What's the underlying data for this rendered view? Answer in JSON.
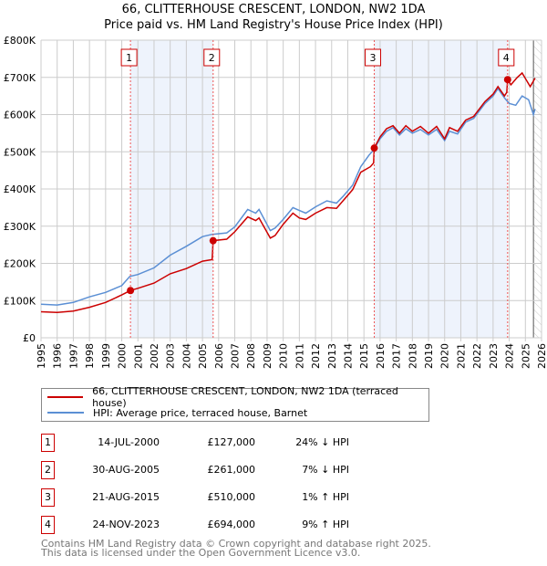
{
  "title_line1": "66, CLITTERHOUSE CRESCENT, LONDON, NW2 1DA",
  "title_line2": "Price paid vs. HM Land Registry's House Price Index (HPI)",
  "chart_data": {
    "type": "line",
    "title": "66, CLITTERHOUSE CRESCENT, LONDON, NW2 1DA - Price paid vs. HM Land Registry's House Price Index (HPI)",
    "xlim": [
      1995,
      2026
    ],
    "ylim": [
      0,
      800000
    ],
    "x_ticks": [
      "1995",
      "1996",
      "1997",
      "1998",
      "1999",
      "2000",
      "2001",
      "2002",
      "2003",
      "2004",
      "2005",
      "2006",
      "2007",
      "2008",
      "2009",
      "2010",
      "2011",
      "2012",
      "2013",
      "2014",
      "2015",
      "2016",
      "2017",
      "2018",
      "2019",
      "2020",
      "2021",
      "2022",
      "2023",
      "2024",
      "2025",
      "2026"
    ],
    "y_ticks": [
      {
        "v": 0,
        "label": "£0"
      },
      {
        "v": 100000,
        "label": "£100K"
      },
      {
        "v": 200000,
        "label": "£200K"
      },
      {
        "v": 300000,
        "label": "£300K"
      },
      {
        "v": 400000,
        "label": "£400K"
      },
      {
        "v": 500000,
        "label": "£500K"
      },
      {
        "v": 600000,
        "label": "£600K"
      },
      {
        "v": 700000,
        "label": "£700K"
      },
      {
        "v": 800000,
        "label": "£800K"
      }
    ],
    "grid": true,
    "forecast_hatch_from": 2025.5,
    "series": [
      {
        "name": "66, CLITTERHOUSE CRESCENT, LONDON, NW2 1DA (terraced house)",
        "color": "#cc0000",
        "x": [
          1995,
          1996,
          1997,
          1998,
          1999,
          2000,
          2000.54,
          2001,
          2002,
          2003,
          2004,
          2005,
          2005.6,
          2005.66,
          2006.5,
          2007,
          2007.8,
          2008.3,
          2008.5,
          2009.2,
          2009.5,
          2010,
          2010.6,
          2011,
          2011.4,
          2012,
          2012.7,
          2013.3,
          2013.7,
          2014.3,
          2014.8,
          2015.4,
          2015.6,
          2015.64,
          2016,
          2016.4,
          2016.8,
          2017.2,
          2017.6,
          2018,
          2018.5,
          2019,
          2019.5,
          2020,
          2020.3,
          2020.8,
          2021.3,
          2021.8,
          2022.5,
          2023,
          2023.3,
          2023.7,
          2023.85,
          2023.9,
          2024.1,
          2024.5,
          2024.8,
          2025.3,
          2025.6
        ],
        "y": [
          70,
          68,
          72,
          82,
          95,
          115,
          127,
          133,
          147,
          172,
          186,
          206,
          210,
          261,
          265,
          285,
          325,
          315,
          322,
          268,
          275,
          305,
          335,
          322,
          318,
          335,
          350,
          348,
          368,
          398,
          445,
          460,
          470,
          510,
          540,
          562,
          570,
          550,
          570,
          555,
          568,
          550,
          568,
          535,
          565,
          555,
          585,
          595,
          635,
          655,
          675,
          650,
          660,
          694,
          680,
          700,
          712,
          675,
          698
        ]
      },
      {
        "name": "HPI: Average price, terraced house, Barnet",
        "color": "#5b8fd4",
        "x": [
          1995,
          1996,
          1997,
          1998,
          1999,
          2000,
          2000.5,
          2001,
          2002,
          2003,
          2004,
          2005,
          2005.6,
          2006.5,
          2007,
          2007.8,
          2008.3,
          2008.5,
          2009.2,
          2009.5,
          2010,
          2010.6,
          2011,
          2011.4,
          2012,
          2012.7,
          2013.3,
          2013.7,
          2014.3,
          2014.8,
          2015.3,
          2015.6,
          2016,
          2016.4,
          2016.8,
          2017.2,
          2017.6,
          2018,
          2018.5,
          2019,
          2019.5,
          2020,
          2020.3,
          2020.8,
          2021.3,
          2021.8,
          2022.5,
          2023,
          2023.3,
          2023.7,
          2024,
          2024.4,
          2024.8,
          2025.2,
          2025.5,
          2025.6
        ],
        "y": [
          90,
          88,
          95,
          110,
          122,
          140,
          165,
          170,
          188,
          222,
          246,
          272,
          278,
          282,
          298,
          345,
          335,
          345,
          288,
          295,
          318,
          350,
          342,
          335,
          352,
          368,
          362,
          380,
          410,
          460,
          490,
          505,
          535,
          555,
          565,
          545,
          562,
          550,
          560,
          545,
          560,
          530,
          555,
          548,
          580,
          590,
          630,
          650,
          670,
          645,
          630,
          625,
          650,
          640,
          600,
          615
        ]
      }
    ],
    "y_units": "thousands GBP",
    "sales": [
      {
        "label": "1",
        "x": 2000.54,
        "price": 127
      },
      {
        "label": "2",
        "x": 2005.66,
        "price": 261
      },
      {
        "label": "3",
        "x": 2015.64,
        "price": 510
      },
      {
        "label": "4",
        "x": 2023.9,
        "price": 694
      }
    ],
    "shaded_spans": [
      [
        2000.54,
        2005.66
      ],
      [
        2015.64,
        2023.9
      ]
    ]
  },
  "legend": {
    "property": "66, CLITTERHOUSE CRESCENT, LONDON, NW2 1DA (terraced house)",
    "hpi": "HPI: Average price, terraced house, Barnet"
  },
  "transactions": [
    {
      "num": "1",
      "date": "14-JUL-2000",
      "price": "£127,000",
      "pct": "24% ↓ HPI"
    },
    {
      "num": "2",
      "date": "30-AUG-2005",
      "price": "£261,000",
      "pct": "7% ↓ HPI"
    },
    {
      "num": "3",
      "date": "21-AUG-2015",
      "price": "£510,000",
      "pct": "1% ↑ HPI"
    },
    {
      "num": "4",
      "date": "24-NOV-2023",
      "price": "£694,000",
      "pct": "9% ↑ HPI"
    }
  ],
  "footer_line1": "Contains HM Land Registry data © Crown copyright and database right 2025.",
  "footer_line2": "This data is licensed under the Open Government Licence v3.0."
}
